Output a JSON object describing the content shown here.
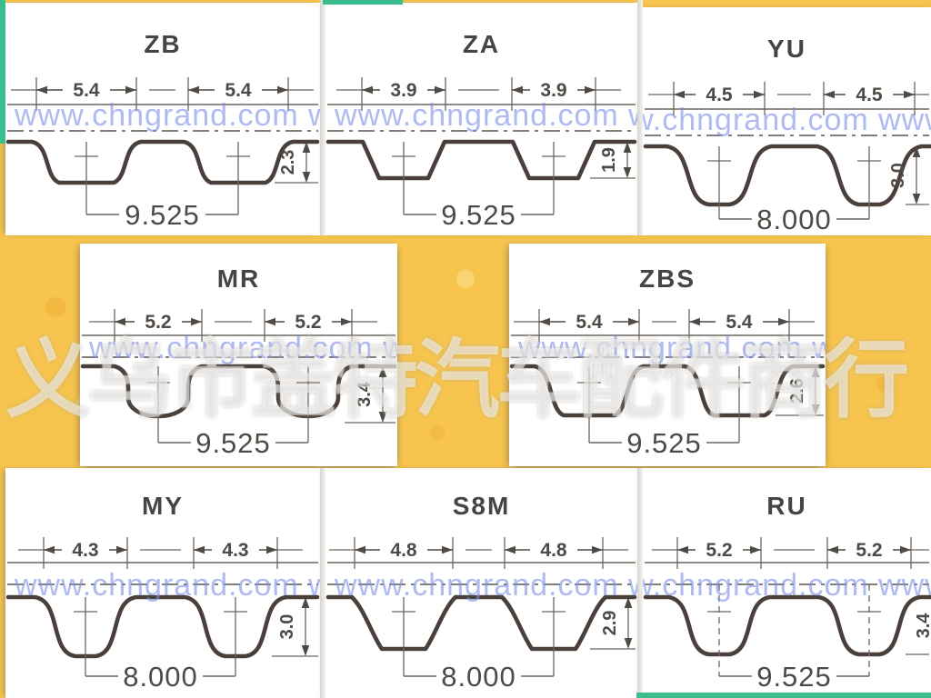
{
  "page": {
    "background_color": "#F7C54E",
    "accent_green": "#3CBD8E",
    "panel_color": "#FFFFFF",
    "line_color": "#4A403B"
  },
  "watermarks": {
    "url_text": "www.chngrand.com",
    "company_cn": "义乌市盖特汽车配件商行"
  },
  "panels": [
    {
      "id": "zb",
      "title": "ZB",
      "tooth_top_width_mm": "5.4",
      "pitch_mm": "9.525",
      "tooth_depth_mm": "2.3",
      "profile_shape": "rounded-trapezoid"
    },
    {
      "id": "za",
      "title": "ZA",
      "tooth_top_width_mm": "3.9",
      "pitch_mm": "9.525",
      "tooth_depth_mm": "1.9",
      "profile_shape": "trapezoid"
    },
    {
      "id": "yu",
      "title": "YU",
      "tooth_top_width_mm": "4.5",
      "pitch_mm": "8.000",
      "tooth_depth_mm": "3.0",
      "profile_shape": "curvilinear"
    },
    {
      "id": "mr",
      "title": "MR",
      "tooth_top_width_mm": "5.2",
      "pitch_mm": "9.525",
      "tooth_depth_mm": "3.4",
      "profile_shape": "deep-u"
    },
    {
      "id": "zbs",
      "title": "ZBS",
      "tooth_top_width_mm": "5.4",
      "pitch_mm": "9.525",
      "tooth_depth_mm": "2.6",
      "profile_shape": "rounded-trapezoid"
    },
    {
      "id": "my",
      "title": "MY",
      "tooth_top_width_mm": "4.3",
      "pitch_mm": "8.000",
      "tooth_depth_mm": "3.0",
      "profile_shape": "curvilinear"
    },
    {
      "id": "s8m",
      "title": "S8M",
      "tooth_top_width_mm": "4.8",
      "pitch_mm": "8.000",
      "tooth_depth_mm": "2.9",
      "profile_shape": "rounded-trapezoid"
    },
    {
      "id": "ru",
      "title": "RU",
      "tooth_top_width_mm": "5.2",
      "pitch_mm": "9.525",
      "tooth_depth_mm": "3.4",
      "profile_shape": "curvilinear"
    }
  ]
}
